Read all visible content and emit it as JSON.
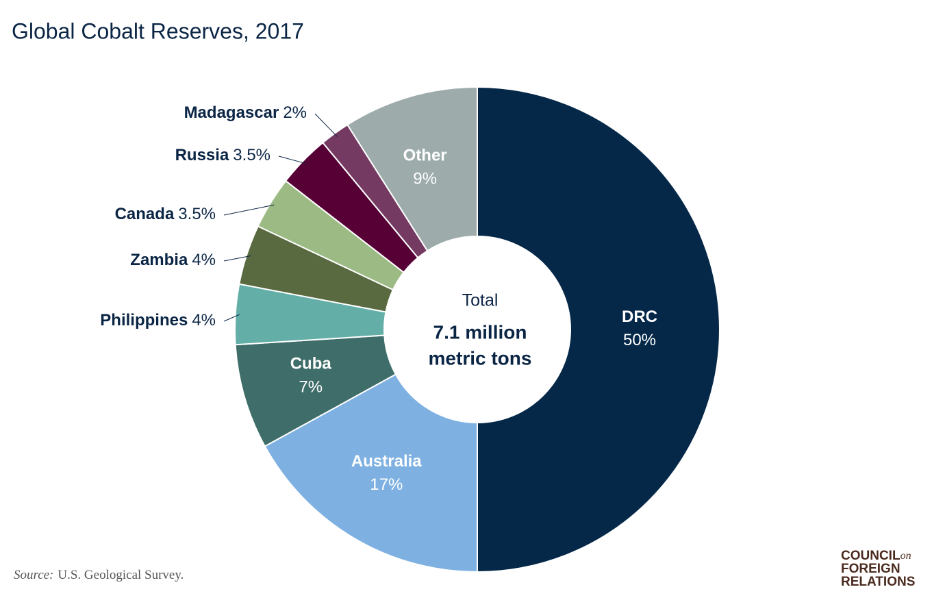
{
  "chart_data": {
    "type": "donut",
    "title": "Global Cobalt Reserves, 2017",
    "categories": [
      "DRC",
      "Australia",
      "Cuba",
      "Philippines",
      "Zambia",
      "Canada",
      "Russia",
      "Madagascar",
      "Other"
    ],
    "values": [
      50,
      17,
      7,
      4,
      4,
      3.5,
      3.5,
      2,
      9
    ],
    "value_labels": [
      "50%",
      "17%",
      "7%",
      "4%",
      "4%",
      "3.5%",
      "3.5%",
      "2%",
      "9%"
    ],
    "colors": [
      "#052849",
      "#7eb1e2",
      "#3f6e6a",
      "#64aea8",
      "#5a6a40",
      "#9cba83",
      "#560036",
      "#743a62",
      "#9dabab"
    ],
    "center_label": "Total",
    "center_value": [
      "7.1 million",
      "metric tons"
    ],
    "source_label": "Source:",
    "source": "U.S. Geological Survey.",
    "logo": {
      "line1": "COUNCIL",
      "small": "on",
      "line2": "FOREIGN",
      "line3": "RELATIONS"
    }
  }
}
